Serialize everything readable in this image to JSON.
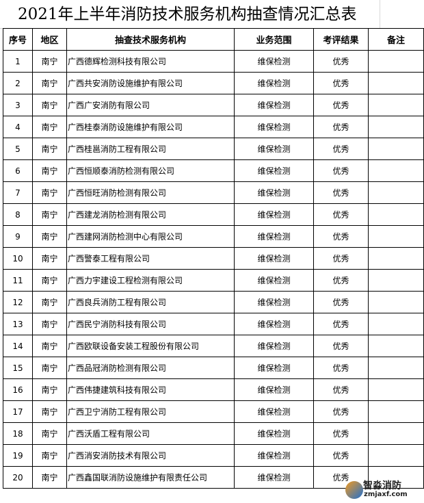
{
  "title": "2021年上半年消防技术服务机构抽查情况汇总表",
  "headers": [
    "序号",
    "地区",
    "抽查技术服务机构",
    "业务范围",
    "考评结果",
    "备注"
  ],
  "rows": [
    {
      "no": "1",
      "region": "南宁",
      "org": "广西德辉检测科技有限公司",
      "scope": "维保检测",
      "result": "优秀",
      "note": ""
    },
    {
      "no": "2",
      "region": "南宁",
      "org": "广西共安消防设施维护有限公司",
      "scope": "维保检测",
      "result": "优秀",
      "note": ""
    },
    {
      "no": "3",
      "region": "南宁",
      "org": "广西广安消防有限公司",
      "scope": "维保检测",
      "result": "优秀",
      "note": ""
    },
    {
      "no": "4",
      "region": "南宁",
      "org": "广西桂泰消防设施维护有限公司",
      "scope": "维保检测",
      "result": "优秀",
      "note": ""
    },
    {
      "no": "5",
      "region": "南宁",
      "org": "广西桂邕消防工程有限公司",
      "scope": "维保检测",
      "result": "优秀",
      "note": ""
    },
    {
      "no": "6",
      "region": "南宁",
      "org": "广西恒顺泰消防检测有限公司",
      "scope": "维保检测",
      "result": "优秀",
      "note": ""
    },
    {
      "no": "7",
      "region": "南宁",
      "org": "广西恒旺消防检测有限公司",
      "scope": "维保检测",
      "result": "优秀",
      "note": ""
    },
    {
      "no": "8",
      "region": "南宁",
      "org": "广西建龙消防检测有限公司",
      "scope": "维保检测",
      "result": "优秀",
      "note": ""
    },
    {
      "no": "9",
      "region": "南宁",
      "org": "广西建网消防检测中心有限公司",
      "scope": "维保检测",
      "result": "优秀",
      "note": ""
    },
    {
      "no": "10",
      "region": "南宁",
      "org": "广西警泰工程有限公司",
      "scope": "维保检测",
      "result": "优秀",
      "note": ""
    },
    {
      "no": "11",
      "region": "南宁",
      "org": "广西力宇建设工程检测有限公司",
      "scope": "维保检测",
      "result": "优秀",
      "note": ""
    },
    {
      "no": "12",
      "region": "南宁",
      "org": "广西良兵消防工程有限公司",
      "scope": "维保检测",
      "result": "优秀",
      "note": ""
    },
    {
      "no": "13",
      "region": "南宁",
      "org": "广西民宁消防科技有限公司",
      "scope": "维保检测",
      "result": "优秀",
      "note": ""
    },
    {
      "no": "14",
      "region": "南宁",
      "org": "广西欧联设备安装工程股份有限公司",
      "scope": "维保检测",
      "result": "优秀",
      "note": ""
    },
    {
      "no": "15",
      "region": "南宁",
      "org": "广西品冠消防检测有限公司",
      "scope": "维保检测",
      "result": "优秀",
      "note": ""
    },
    {
      "no": "16",
      "region": "南宁",
      "org": "广西伟捷建筑科技有限公司",
      "scope": "维保检测",
      "result": "优秀",
      "note": ""
    },
    {
      "no": "17",
      "region": "南宁",
      "org": "广西卫宁消防工程有限公司",
      "scope": "维保检测",
      "result": "优秀",
      "note": ""
    },
    {
      "no": "18",
      "region": "南宁",
      "org": "广西沃盾工程有限公司",
      "scope": "维保检测",
      "result": "优秀",
      "note": ""
    },
    {
      "no": "19",
      "region": "南宁",
      "org": "广西消安消防技术有限公司",
      "scope": "维保检测",
      "result": "优秀",
      "note": ""
    },
    {
      "no": "20",
      "region": "南宁",
      "org": "广西鑫国联消防设施维护有限责任公司",
      "scope": "维保检测",
      "result": "优秀",
      "note": ""
    }
  ],
  "watermark": {
    "name": "智淼消防",
    "url": "zmjaxf.com"
  }
}
